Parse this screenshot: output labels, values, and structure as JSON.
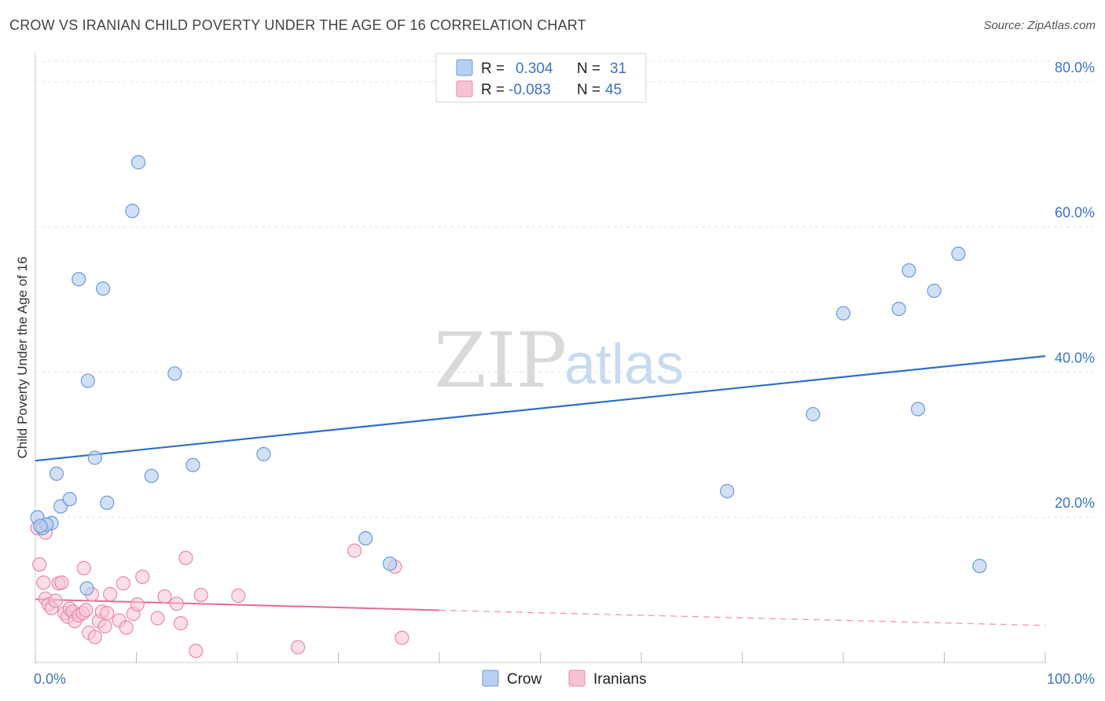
{
  "title": "CROW VS IRANIAN CHILD POVERTY UNDER THE AGE OF 16 CORRELATION CHART",
  "source": "Source: ZipAtlas.com",
  "watermark": {
    "zip": "ZIP",
    "atlas": "atlas"
  },
  "colors": {
    "crow_fill": "#b8d0f0",
    "crow_stroke": "#6b9ad8",
    "crow_line": "#2f6fc8",
    "iranian_fill": "#f7c3d3",
    "iranian_stroke": "#e88aaa",
    "iranian_line": "#e46a95",
    "axis_text": "#3b74c9",
    "grid": "#e3e3e3"
  },
  "legend": {
    "rows": [
      {
        "r_label": "R =",
        "r_value": "0.304",
        "n_label": "N =",
        "n_value": "31"
      },
      {
        "r_label": "R =",
        "r_value": "-0.083",
        "n_label": "N =",
        "n_value": "45"
      }
    ]
  },
  "bottom_legend": {
    "crow": "Crow",
    "iranians": "Iranians"
  },
  "chart_data": {
    "type": "scatter",
    "title": "CROW VS IRANIAN CHILD POVERTY UNDER THE AGE OF 16 CORRELATION CHART",
    "xlabel": "",
    "ylabel": "Child Poverty Under the Age of 16",
    "xlim": [
      0,
      100
    ],
    "ylim": [
      0,
      84
    ],
    "x_tick_labels": [
      "0.0%",
      "100.0%"
    ],
    "y_ticks": [
      20,
      40,
      60,
      80
    ],
    "y_tick_labels": [
      "20.0%",
      "40.0%",
      "60.0%",
      "80.0%"
    ],
    "grid": true,
    "legend_position": "top-center",
    "series": [
      {
        "name": "Crow",
        "r": 0.304,
        "n": 31,
        "points": [
          [
            0.2,
            20.0
          ],
          [
            0.7,
            18.5
          ],
          [
            1.6,
            19.2
          ],
          [
            2.1,
            26.0
          ],
          [
            2.5,
            21.5
          ],
          [
            3.4,
            22.5
          ],
          [
            4.3,
            52.8
          ],
          [
            5.1,
            10.2
          ],
          [
            5.2,
            38.8
          ],
          [
            5.9,
            28.2
          ],
          [
            6.7,
            51.5
          ],
          [
            7.1,
            22.0
          ],
          [
            9.6,
            62.2
          ],
          [
            10.2,
            68.9
          ],
          [
            11.5,
            25.7
          ],
          [
            13.8,
            39.8
          ],
          [
            15.6,
            27.2
          ],
          [
            22.6,
            28.7
          ],
          [
            32.7,
            17.1
          ],
          [
            35.1,
            13.6
          ],
          [
            68.5,
            23.6
          ],
          [
            77.0,
            34.2
          ],
          [
            80.0,
            48.1
          ],
          [
            85.5,
            48.7
          ],
          [
            86.5,
            54.0
          ],
          [
            87.4,
            34.9
          ],
          [
            89.0,
            51.2
          ],
          [
            91.4,
            56.3
          ],
          [
            93.5,
            13.3
          ],
          [
            1.1,
            19.0
          ],
          [
            0.5,
            18.8
          ]
        ],
        "trend": {
          "x": [
            0,
            100
          ],
          "y": [
            27.8,
            42.2
          ]
        }
      },
      {
        "name": "Iranians",
        "r": -0.083,
        "n": 45,
        "points": [
          [
            0.2,
            18.5
          ],
          [
            1.0,
            17.9
          ],
          [
            0.4,
            13.5
          ],
          [
            0.8,
            11.0
          ],
          [
            1.0,
            8.8
          ],
          [
            1.3,
            8.0
          ],
          [
            1.6,
            7.5
          ],
          [
            2.0,
            8.5
          ],
          [
            2.3,
            10.9
          ],
          [
            2.6,
            11.0
          ],
          [
            2.9,
            6.8
          ],
          [
            3.2,
            6.3
          ],
          [
            3.4,
            7.4
          ],
          [
            3.7,
            7.0
          ],
          [
            3.9,
            5.7
          ],
          [
            4.3,
            6.5
          ],
          [
            4.7,
            6.8
          ],
          [
            5.0,
            7.2
          ],
          [
            5.3,
            4.1
          ],
          [
            5.6,
            9.4
          ],
          [
            5.9,
            3.5
          ],
          [
            6.3,
            5.7
          ],
          [
            6.6,
            7.0
          ],
          [
            6.9,
            5.0
          ],
          [
            7.1,
            6.8
          ],
          [
            7.4,
            9.4
          ],
          [
            8.3,
            5.8
          ],
          [
            8.7,
            10.9
          ],
          [
            9.0,
            4.8
          ],
          [
            9.7,
            6.7
          ],
          [
            10.1,
            8.0
          ],
          [
            10.6,
            11.8
          ],
          [
            12.1,
            6.1
          ],
          [
            12.8,
            9.1
          ],
          [
            14.0,
            8.1
          ],
          [
            14.4,
            5.4
          ],
          [
            14.9,
            14.4
          ],
          [
            15.9,
            1.6
          ],
          [
            16.4,
            9.3
          ],
          [
            20.1,
            9.2
          ],
          [
            26.0,
            2.1
          ],
          [
            31.6,
            15.4
          ],
          [
            35.6,
            13.2
          ],
          [
            36.3,
            3.4
          ],
          [
            4.8,
            13.0
          ]
        ],
        "trend_solid": {
          "x": [
            0,
            40
          ],
          "y": [
            8.7,
            7.2
          ]
        },
        "trend_dashed": {
          "x": [
            40,
            100
          ],
          "y": [
            7.2,
            5.1
          ]
        }
      }
    ]
  }
}
